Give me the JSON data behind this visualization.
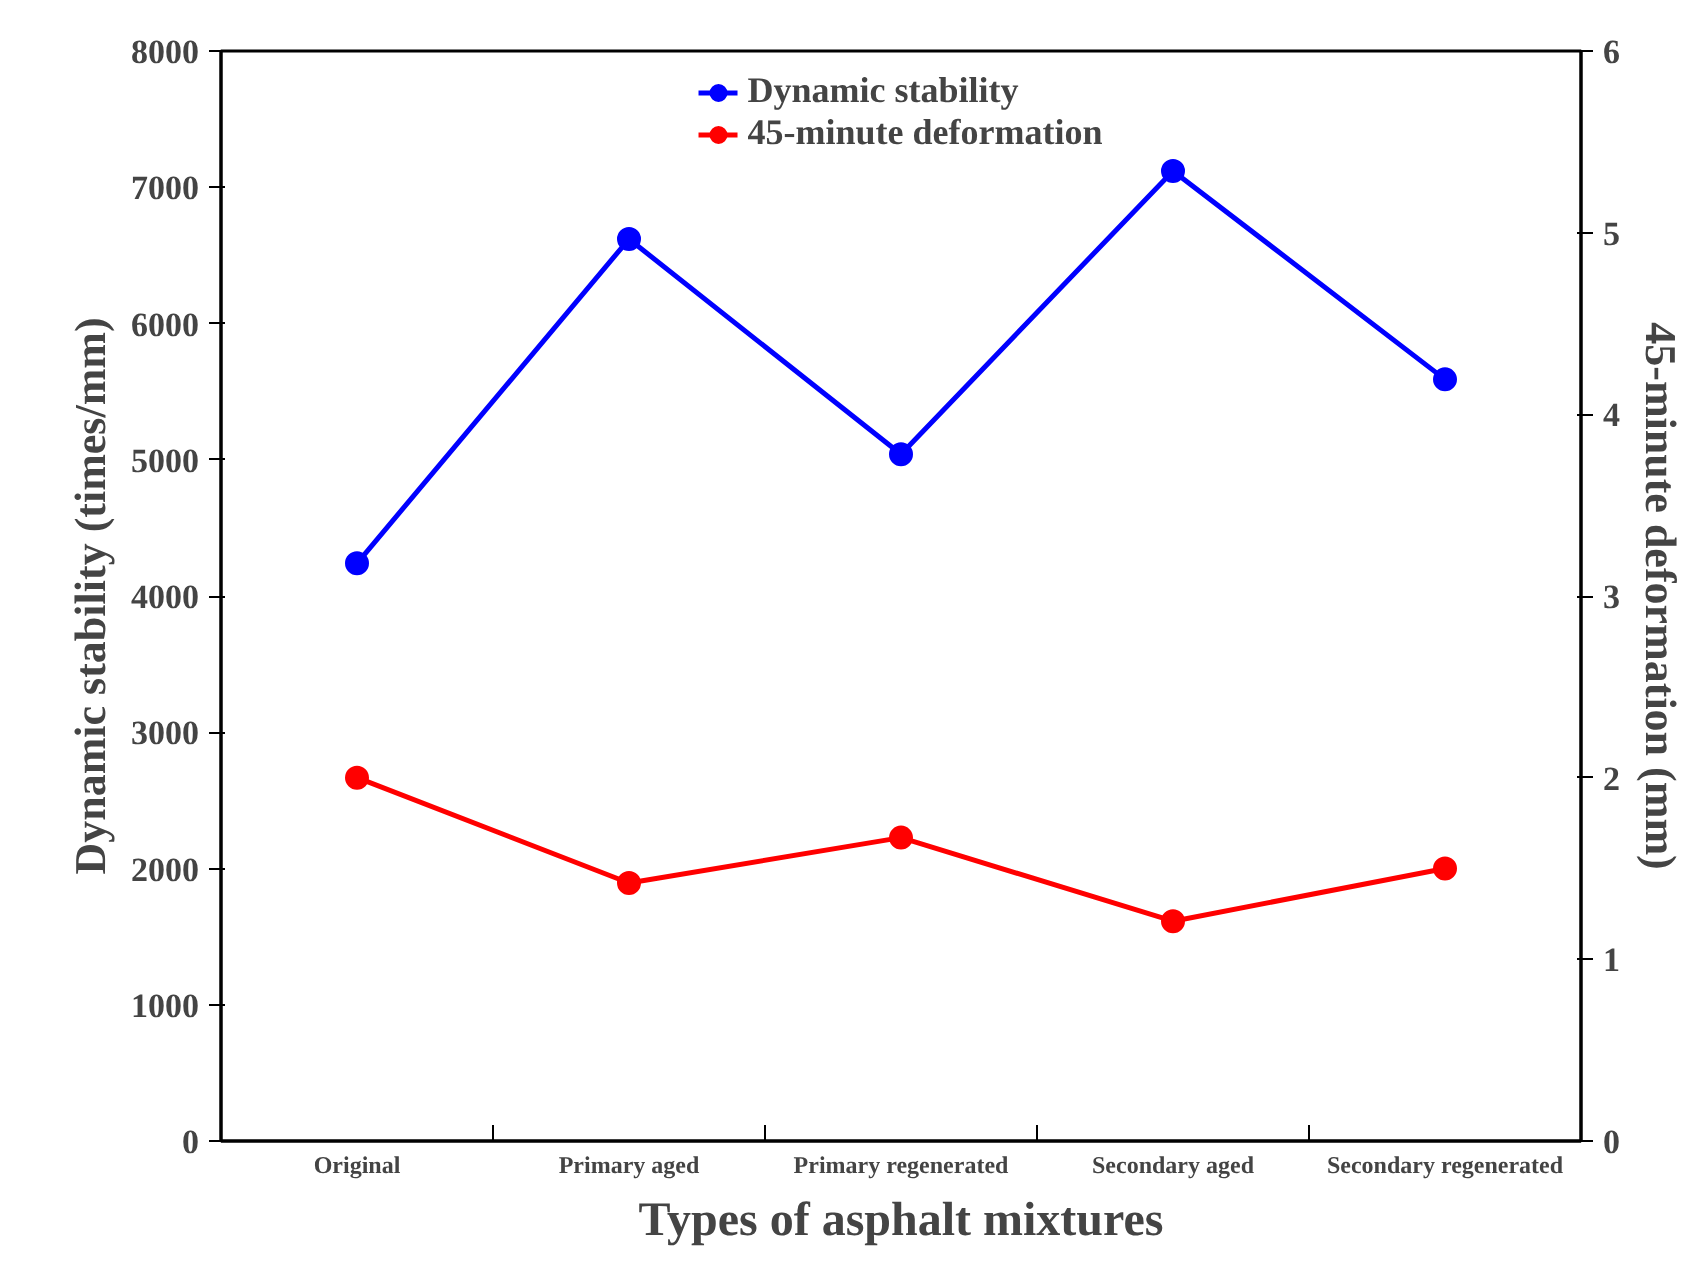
{
  "chart_data": {
    "type": "line",
    "xlabel": "Types of asphalt mixtures",
    "ylabel": "Dynamic stability (times/mm)",
    "y2label": "45-minute deformation (mm)",
    "categories": [
      "Original",
      "Primary aged",
      "Primary regenerated",
      "Secondary aged",
      "Secondary regenerated"
    ],
    "series": [
      {
        "name": "Dynamic stability",
        "color": "#0000ff",
        "values": [
          4240,
          6620,
          5040,
          7120,
          5590
        ]
      },
      {
        "name": "45-minute deformation",
        "color": "#ff0000",
        "axis": "y2",
        "values": [
          2.0,
          1.42,
          1.67,
          1.21,
          1.5
        ]
      }
    ],
    "ylim": [
      0,
      8000
    ],
    "yticks": [
      0,
      1000,
      2000,
      3000,
      4000,
      5000,
      6000,
      7000,
      8000
    ],
    "y2lim": [
      0,
      6
    ],
    "y2ticks": [
      0,
      1,
      2,
      3,
      4,
      5,
      6
    ],
    "grid": false,
    "legend": "top",
    "marker": "circle",
    "line_style": "solid"
  }
}
